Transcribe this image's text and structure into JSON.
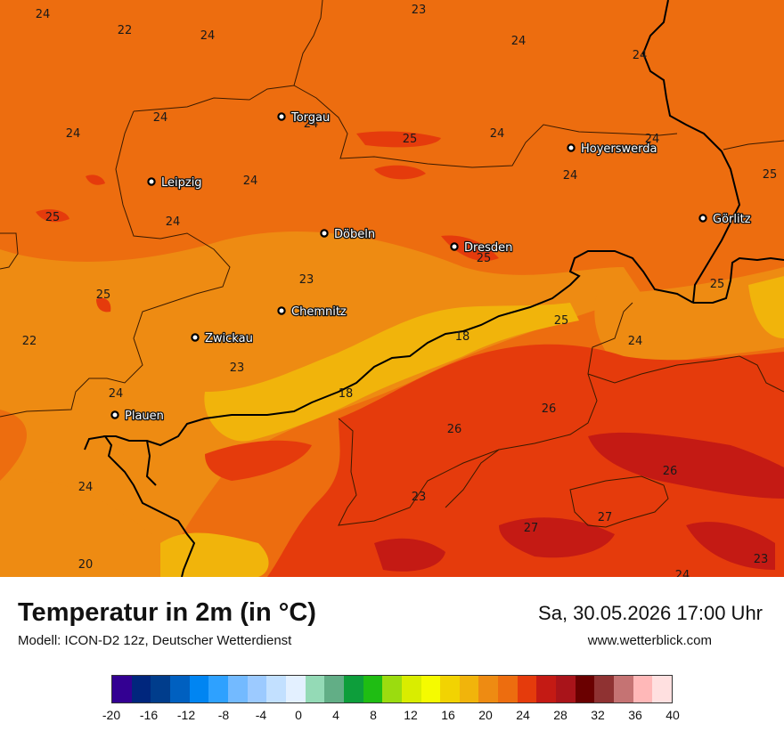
{
  "header": {
    "title": "Temperatur in 2m (in °C)",
    "model": "Modell: ICON-D2 12z, Deutscher Wetterdienst",
    "datetime": "Sa, 30.05.2026 17:00 Uhr",
    "website": "www.wetterblick.com"
  },
  "cities": [
    {
      "name": "Torgau"
    },
    {
      "name": "Hoyerswerda"
    },
    {
      "name": "Leipzig"
    },
    {
      "name": "Döbeln"
    },
    {
      "name": "Dresden"
    },
    {
      "name": "Görlitz"
    },
    {
      "name": "Chemnitz"
    },
    {
      "name": "Zwickau"
    },
    {
      "name": "Plauen"
    }
  ],
  "temperature_labels": [
    "24",
    "22",
    "24",
    "23",
    "24",
    "24",
    "24",
    "24",
    "24",
    "25",
    "24",
    "24",
    "24",
    "24",
    "25",
    "24",
    "25",
    "23",
    "25",
    "25",
    "22",
    "23",
    "18",
    "25",
    "24",
    "24",
    "18",
    "26",
    "26",
    "25",
    "26",
    "23",
    "24",
    "27",
    "27",
    "20",
    "24",
    "23"
  ],
  "legend": {
    "colors": [
      "#330092",
      "#00267d",
      "#003d8c",
      "#0060c0",
      "#0085f2",
      "#2ea1ff",
      "#73baff",
      "#9ccaff",
      "#c2e0ff",
      "#e3f0ff",
      "#94dab6",
      "#62ae86",
      "#0d9e3b",
      "#1fbd13",
      "#9bdc0f",
      "#d9ed00",
      "#f5fb00",
      "#f2d302",
      "#f1b40b",
      "#ee8b12",
      "#ed6d0f",
      "#e53b0c",
      "#c41a14",
      "#a9141a",
      "#6a0000",
      "#8f3232",
      "#c57373",
      "#ffb8b8",
      "#ffe0e0"
    ],
    "ticks": [
      "-20",
      "-16",
      "-12",
      "-8",
      "-4",
      "0",
      "4",
      "8",
      "12",
      "16",
      "20",
      "24",
      "28",
      "32",
      "36",
      "40"
    ]
  },
  "colors": {
    "temp_18_20": "#f0b50b",
    "temp_20_22": "#ee8b12",
    "temp_22_24": "#ed6d0f",
    "temp_24_26": "#e53b0c",
    "temp_26_28": "#c41a14",
    "temp_28_30": "#a9141a",
    "border_line": "#000000",
    "district_line": "#3a1a00"
  }
}
